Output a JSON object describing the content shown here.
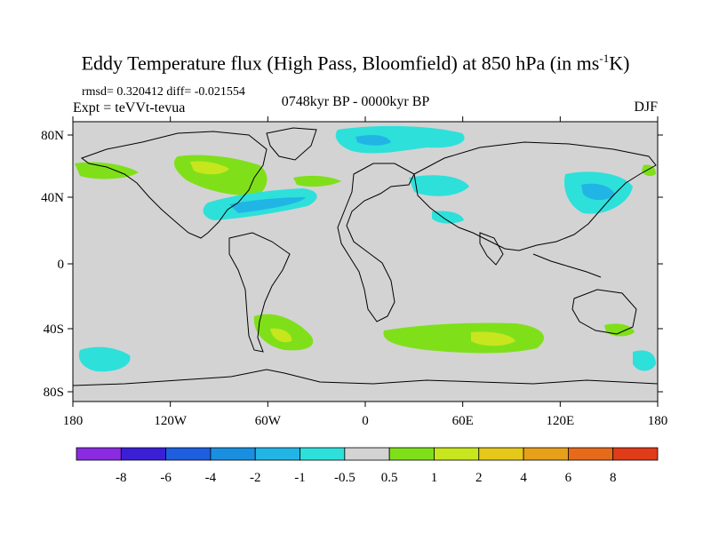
{
  "title": {
    "main": "Eddy Temperature flux (High Pass, Bloomfield) at 850 hPa (in ms",
    "sup": "-1",
    "tail": "K)"
  },
  "stats": "rmsd= 0.320412 diff= -0.021554",
  "expt": "Expt = teVVt-tevua",
  "period": "0748kyr BP - 0000kyr BP",
  "season": "DJF",
  "axes": {
    "lon_ticks": [
      "180",
      "120W",
      "60W",
      "0",
      "60E",
      "120E",
      "180"
    ],
    "lat_ticks": [
      "80N",
      "40N",
      "0",
      "40S",
      "80S"
    ]
  },
  "colorbar": {
    "labels": [
      "-8",
      "-6",
      "-4",
      "-2",
      "-1",
      "-0.5",
      "0.5",
      "1",
      "2",
      "4",
      "6",
      "8"
    ],
    "colors": [
      "#8a2be2",
      "#3b1fd6",
      "#1e5fe0",
      "#1a8fe0",
      "#21b5e6",
      "#2ee0da",
      "#d3d3d3",
      "#7fe01a",
      "#c8e61e",
      "#e6c81a",
      "#e6a019",
      "#e66a19",
      "#e03c19"
    ]
  },
  "map_colors": {
    "background": "#d3d3d3",
    "cyan": "#2ee0da",
    "blue": "#21b5e6",
    "green": "#7fe01a",
    "yellow": "#c8e61e"
  }
}
